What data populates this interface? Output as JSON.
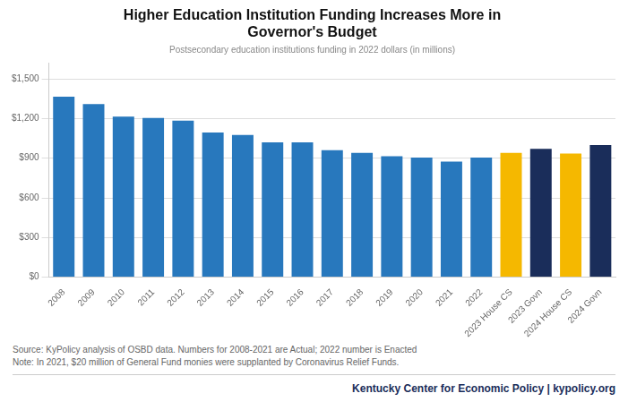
{
  "chart_data": {
    "type": "bar",
    "title": [
      "Higher Education Institution Funding Increases More in",
      "Governor's Budget"
    ],
    "subtitle": "Postsecondary education institutions funding in 2022 dollars (in millions)",
    "categories": [
      "2008",
      "2009",
      "2010",
      "2011",
      "2012",
      "2013",
      "2014",
      "2015",
      "2016",
      "2017",
      "2018",
      "2019",
      "2020",
      "2021",
      "2022",
      "2023 House CS",
      "2023 Govn",
      "2024 House CS",
      "2024 Govn"
    ],
    "values": [
      1365,
      1310,
      1215,
      1205,
      1185,
      1095,
      1075,
      1020,
      1020,
      960,
      940,
      915,
      905,
      875,
      905,
      940,
      970,
      935,
      1000
    ],
    "colors": [
      "#2878bd",
      "#2878bd",
      "#2878bd",
      "#2878bd",
      "#2878bd",
      "#2878bd",
      "#2878bd",
      "#2878bd",
      "#2878bd",
      "#2878bd",
      "#2878bd",
      "#2878bd",
      "#2878bd",
      "#2878bd",
      "#2878bd",
      "#f5b800",
      "#1a2d5a",
      "#f5b800",
      "#1a2d5a"
    ],
    "ylim": [
      0,
      1620
    ],
    "yticks": [
      {
        "value": 0,
        "label": "$0"
      },
      {
        "value": 300,
        "label": "$300"
      },
      {
        "value": 600,
        "label": "$600"
      },
      {
        "value": 900,
        "label": "$900"
      },
      {
        "value": 1200,
        "label": "$1,200"
      },
      {
        "value": 1500,
        "label": "$1,500"
      }
    ],
    "grid": true,
    "annotations": [
      "Source: KyPolicy analysis of OSBD data. Numbers for 2008-2021 are Actual; 2022 number is Enacted",
      "Note: In 2021, $20 million of General Fund monies were supplanted by Coronavirus Relief Funds.",
      "Kentucky Center for Economic Policy  |  kypolicy.org"
    ]
  }
}
